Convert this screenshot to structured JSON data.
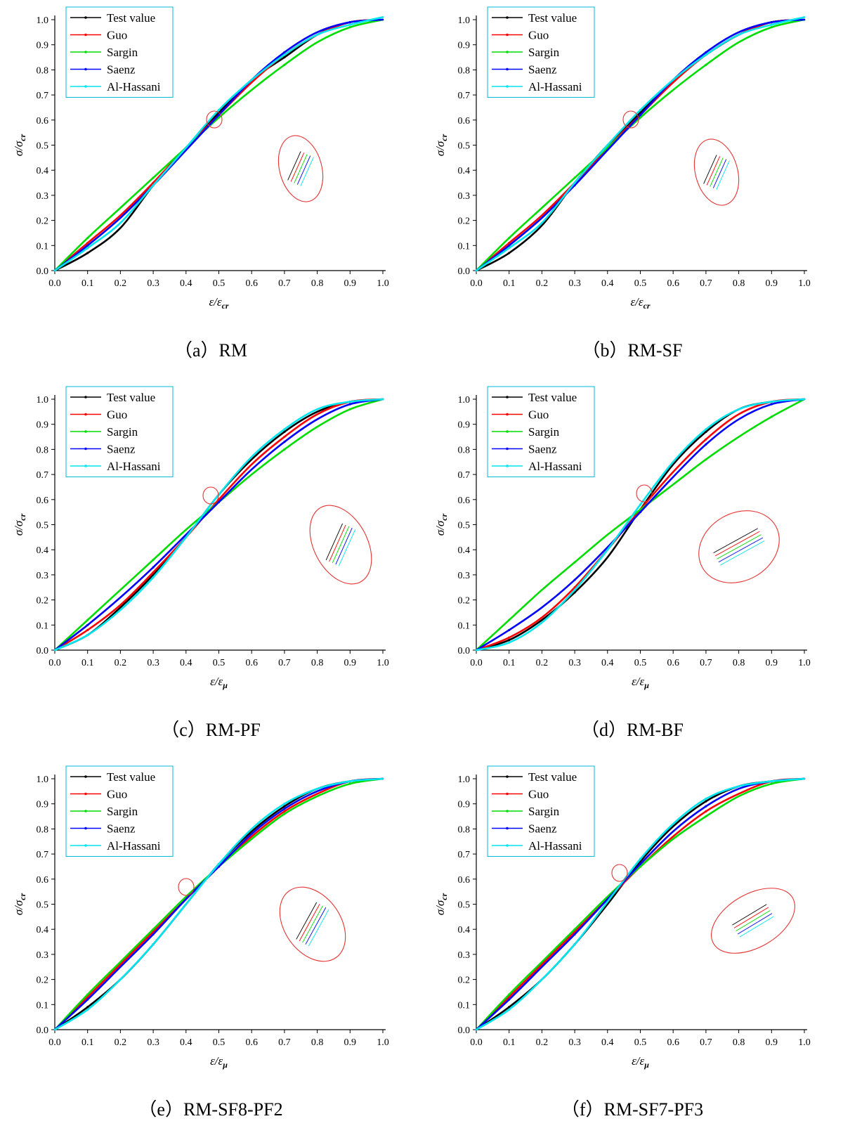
{
  "chart_data": [
    {
      "type": "line",
      "caption": "（a）RM",
      "xlabel": "ε/ε_cr",
      "ylabel": "σ/σ_cr",
      "xlim": [
        0,
        1.0
      ],
      "ylim": [
        0,
        1.0
      ],
      "xticks": [
        "0.0",
        "0.1",
        "0.2",
        "0.3",
        "0.4",
        "0.5",
        "0.6",
        "0.7",
        "0.8",
        "0.9",
        "1.0"
      ],
      "yticks": [
        "0.0",
        "0.1",
        "0.2",
        "0.3",
        "0.4",
        "0.5",
        "0.6",
        "0.7",
        "0.8",
        "0.9",
        "1.0"
      ],
      "legend_position": "top-left",
      "series": [
        {
          "name": "Test value",
          "color": "#000000",
          "x": [
            0,
            0.1,
            0.2,
            0.3,
            0.4,
            0.5,
            0.6,
            0.7,
            0.8,
            0.9,
            1.0
          ],
          "y": [
            0,
            0.07,
            0.17,
            0.34,
            0.49,
            0.63,
            0.76,
            0.85,
            0.94,
            0.99,
            1.0
          ]
        },
        {
          "name": "Guo",
          "color": "#ff0000",
          "x": [
            0,
            0.1,
            0.2,
            0.3,
            0.4,
            0.5,
            0.6,
            0.7,
            0.8,
            0.9,
            1.0
          ],
          "y": [
            0,
            0.11,
            0.22,
            0.35,
            0.49,
            0.62,
            0.75,
            0.86,
            0.94,
            0.99,
            1.0
          ]
        },
        {
          "name": "Sargin",
          "color": "#00dd00",
          "x": [
            0,
            0.1,
            0.2,
            0.3,
            0.4,
            0.5,
            0.6,
            0.7,
            0.8,
            0.9,
            1.0
          ],
          "y": [
            0,
            0.13,
            0.25,
            0.37,
            0.49,
            0.61,
            0.72,
            0.82,
            0.91,
            0.97,
            1.0
          ]
        },
        {
          "name": "Saenz",
          "color": "#0000ff",
          "x": [
            0,
            0.1,
            0.2,
            0.3,
            0.4,
            0.5,
            0.6,
            0.7,
            0.8,
            0.9,
            1.0
          ],
          "y": [
            0,
            0.1,
            0.21,
            0.34,
            0.48,
            0.62,
            0.76,
            0.87,
            0.95,
            0.99,
            1.0
          ]
        },
        {
          "name": "Al-Hassani",
          "color": "#00e5ee",
          "x": [
            0,
            0.1,
            0.2,
            0.3,
            0.4,
            0.5,
            0.6,
            0.7,
            0.8,
            0.9,
            1.0
          ],
          "y": [
            0,
            0.09,
            0.19,
            0.34,
            0.49,
            0.64,
            0.76,
            0.86,
            0.94,
            0.98,
            1.01
          ]
        }
      ]
    },
    {
      "type": "line",
      "caption": "（b）RM-SF",
      "xlabel": "ε/ε_cr",
      "ylabel": "σ/σ_cr",
      "xlim": [
        0,
        1.0
      ],
      "ylim": [
        0,
        1.0
      ],
      "xticks": [
        "0.0",
        "0.1",
        "0.2",
        "0.3",
        "0.4",
        "0.5",
        "0.6",
        "0.7",
        "0.8",
        "0.9",
        "1.0"
      ],
      "yticks": [
        "0.0",
        "0.1",
        "0.2",
        "0.3",
        "0.4",
        "0.5",
        "0.6",
        "0.7",
        "0.8",
        "0.9",
        "1.0"
      ],
      "legend_position": "top-left",
      "series": [
        {
          "name": "Test value",
          "color": "#000000",
          "x": [
            0,
            0.1,
            0.2,
            0.3,
            0.4,
            0.5,
            0.6,
            0.7,
            0.8,
            0.9,
            1.0
          ],
          "y": [
            0,
            0.07,
            0.18,
            0.35,
            0.5,
            0.63,
            0.76,
            0.86,
            0.94,
            0.99,
            1.0
          ]
        },
        {
          "name": "Guo",
          "color": "#ff0000",
          "x": [
            0,
            0.1,
            0.2,
            0.3,
            0.4,
            0.5,
            0.6,
            0.7,
            0.8,
            0.9,
            1.0
          ],
          "y": [
            0,
            0.11,
            0.22,
            0.35,
            0.49,
            0.62,
            0.75,
            0.86,
            0.94,
            0.99,
            1.0
          ]
        },
        {
          "name": "Sargin",
          "color": "#00dd00",
          "x": [
            0,
            0.1,
            0.2,
            0.3,
            0.4,
            0.5,
            0.6,
            0.7,
            0.8,
            0.9,
            1.0
          ],
          "y": [
            0,
            0.13,
            0.25,
            0.37,
            0.49,
            0.61,
            0.72,
            0.82,
            0.91,
            0.97,
            1.0
          ]
        },
        {
          "name": "Saenz",
          "color": "#0000ff",
          "x": [
            0,
            0.1,
            0.2,
            0.3,
            0.4,
            0.5,
            0.6,
            0.7,
            0.8,
            0.9,
            1.0
          ],
          "y": [
            0,
            0.1,
            0.21,
            0.34,
            0.48,
            0.62,
            0.76,
            0.87,
            0.95,
            0.99,
            1.0
          ]
        },
        {
          "name": "Al-Hassani",
          "color": "#00e5ee",
          "x": [
            0,
            0.1,
            0.2,
            0.3,
            0.4,
            0.5,
            0.6,
            0.7,
            0.8,
            0.9,
            1.0
          ],
          "y": [
            0,
            0.09,
            0.19,
            0.35,
            0.5,
            0.64,
            0.76,
            0.86,
            0.94,
            0.98,
            1.01
          ]
        }
      ]
    },
    {
      "type": "line",
      "caption": "（c）RM-PF",
      "xlabel": "ε/ε_μ",
      "ylabel": "σ/σ_cr",
      "xlim": [
        0,
        1.0
      ],
      "ylim": [
        0,
        1.0
      ],
      "xticks": [
        "0.0",
        "0.1",
        "0.2",
        "0.3",
        "0.4",
        "0.5",
        "0.6",
        "0.7",
        "0.8",
        "0.9",
        "1.0"
      ],
      "yticks": [
        "0.0",
        "0.1",
        "0.2",
        "0.3",
        "0.4",
        "0.5",
        "0.6",
        "0.7",
        "0.8",
        "0.9",
        "1.0"
      ],
      "legend_position": "top-left",
      "series": [
        {
          "name": "Test value",
          "color": "#000000",
          "x": [
            0,
            0.1,
            0.2,
            0.3,
            0.4,
            0.5,
            0.6,
            0.7,
            0.8,
            0.9,
            1.0
          ],
          "y": [
            0,
            0.06,
            0.17,
            0.3,
            0.45,
            0.62,
            0.76,
            0.87,
            0.95,
            0.99,
            1.0
          ]
        },
        {
          "name": "Guo",
          "color": "#ff0000",
          "x": [
            0,
            0.1,
            0.2,
            0.3,
            0.4,
            0.5,
            0.6,
            0.7,
            0.8,
            0.9,
            1.0
          ],
          "y": [
            0,
            0.08,
            0.18,
            0.31,
            0.45,
            0.6,
            0.74,
            0.85,
            0.94,
            0.99,
            1.0
          ]
        },
        {
          "name": "Sargin",
          "color": "#00dd00",
          "x": [
            0,
            0.1,
            0.2,
            0.3,
            0.4,
            0.5,
            0.6,
            0.7,
            0.8,
            0.9,
            1.0
          ],
          "y": [
            0,
            0.12,
            0.24,
            0.36,
            0.48,
            0.59,
            0.7,
            0.8,
            0.89,
            0.96,
            1.0
          ]
        },
        {
          "name": "Saenz",
          "color": "#0000ff",
          "x": [
            0,
            0.1,
            0.2,
            0.3,
            0.4,
            0.5,
            0.6,
            0.7,
            0.8,
            0.9,
            1.0
          ],
          "y": [
            0,
            0.1,
            0.21,
            0.33,
            0.46,
            0.59,
            0.72,
            0.83,
            0.92,
            0.98,
            1.0
          ]
        },
        {
          "name": "Al-Hassani",
          "color": "#00e5ee",
          "x": [
            0,
            0.1,
            0.2,
            0.3,
            0.4,
            0.5,
            0.6,
            0.7,
            0.8,
            0.9,
            1.0
          ],
          "y": [
            0,
            0.06,
            0.16,
            0.29,
            0.45,
            0.62,
            0.77,
            0.88,
            0.96,
            0.99,
            1.0
          ]
        }
      ]
    },
    {
      "type": "line",
      "caption": "（d）RM-BF",
      "xlabel": "ε/ε_μ",
      "ylabel": "σ/σ_cr",
      "xlim": [
        0,
        1.0
      ],
      "ylim": [
        0,
        1.0
      ],
      "xticks": [
        "0.0",
        "0.1",
        "0.2",
        "0.3",
        "0.4",
        "0.5",
        "0.6",
        "0.7",
        "0.8",
        "0.9",
        "1.0"
      ],
      "yticks": [
        "0.0",
        "0.1",
        "0.2",
        "0.3",
        "0.4",
        "0.5",
        "0.6",
        "0.7",
        "0.8",
        "0.9",
        "1.0"
      ],
      "legend_position": "top-left",
      "series": [
        {
          "name": "Test value",
          "color": "#000000",
          "x": [
            0,
            0.1,
            0.2,
            0.3,
            0.4,
            0.5,
            0.6,
            0.7,
            0.8,
            0.9,
            1.0
          ],
          "y": [
            0,
            0.04,
            0.12,
            0.23,
            0.37,
            0.56,
            0.74,
            0.87,
            0.96,
            0.99,
            1.0
          ]
        },
        {
          "name": "Guo",
          "color": "#ff0000",
          "x": [
            0,
            0.1,
            0.2,
            0.3,
            0.4,
            0.5,
            0.6,
            0.7,
            0.8,
            0.9,
            1.0
          ],
          "y": [
            0,
            0.05,
            0.13,
            0.25,
            0.4,
            0.56,
            0.71,
            0.84,
            0.94,
            0.99,
            1.0
          ]
        },
        {
          "name": "Sargin",
          "color": "#00dd00",
          "x": [
            0,
            0.1,
            0.2,
            0.3,
            0.4,
            0.5,
            0.6,
            0.7,
            0.8,
            0.9,
            1.0
          ],
          "y": [
            0,
            0.12,
            0.24,
            0.35,
            0.46,
            0.56,
            0.66,
            0.76,
            0.85,
            0.93,
            1.0
          ]
        },
        {
          "name": "Saenz",
          "color": "#0000ff",
          "x": [
            0,
            0.1,
            0.2,
            0.3,
            0.4,
            0.5,
            0.6,
            0.7,
            0.8,
            0.9,
            1.0
          ],
          "y": [
            0,
            0.08,
            0.17,
            0.28,
            0.41,
            0.55,
            0.69,
            0.82,
            0.92,
            0.98,
            1.0
          ]
        },
        {
          "name": "Al-Hassani",
          "color": "#00e5ee",
          "x": [
            0,
            0.1,
            0.2,
            0.3,
            0.4,
            0.5,
            0.6,
            0.7,
            0.8,
            0.9,
            1.0
          ],
          "y": [
            0,
            0.03,
            0.11,
            0.24,
            0.4,
            0.58,
            0.75,
            0.88,
            0.96,
            0.99,
            1.0
          ]
        }
      ]
    },
    {
      "type": "line",
      "caption": "（e）RM-SF8-PF2",
      "xlabel": "ε/ε_μ",
      "ylabel": "σ/σ_cr",
      "xlim": [
        0,
        1.0
      ],
      "ylim": [
        0,
        1.0
      ],
      "xticks": [
        "0.0",
        "0.1",
        "0.2",
        "0.3",
        "0.4",
        "0.5",
        "0.6",
        "0.7",
        "0.8",
        "0.9",
        "1.0"
      ],
      "yticks": [
        "0.0",
        "0.1",
        "0.2",
        "0.3",
        "0.4",
        "0.5",
        "0.6",
        "0.7",
        "0.8",
        "0.9",
        "1.0"
      ],
      "legend_position": "top-left",
      "series": [
        {
          "name": "Test value",
          "color": "#000000",
          "x": [
            0,
            0.1,
            0.2,
            0.3,
            0.4,
            0.5,
            0.6,
            0.7,
            0.8,
            0.9,
            1.0
          ],
          "y": [
            0,
            0.09,
            0.2,
            0.34,
            0.5,
            0.66,
            0.79,
            0.89,
            0.96,
            0.99,
            1.0
          ]
        },
        {
          "name": "Guo",
          "color": "#ff0000",
          "x": [
            0,
            0.1,
            0.2,
            0.3,
            0.4,
            0.5,
            0.6,
            0.7,
            0.8,
            0.9,
            1.0
          ],
          "y": [
            0,
            0.13,
            0.26,
            0.39,
            0.52,
            0.65,
            0.77,
            0.87,
            0.94,
            0.99,
            1.0
          ]
        },
        {
          "name": "Sargin",
          "color": "#00dd00",
          "x": [
            0,
            0.1,
            0.2,
            0.3,
            0.4,
            0.5,
            0.6,
            0.7,
            0.8,
            0.9,
            1.0
          ],
          "y": [
            0,
            0.14,
            0.27,
            0.4,
            0.53,
            0.65,
            0.76,
            0.86,
            0.93,
            0.98,
            1.0
          ]
        },
        {
          "name": "Saenz",
          "color": "#0000ff",
          "x": [
            0,
            0.1,
            0.2,
            0.3,
            0.4,
            0.5,
            0.6,
            0.7,
            0.8,
            0.9,
            1.0
          ],
          "y": [
            0,
            0.12,
            0.25,
            0.38,
            0.52,
            0.65,
            0.78,
            0.88,
            0.95,
            0.99,
            1.0
          ]
        },
        {
          "name": "Al-Hassani",
          "color": "#00e5ee",
          "x": [
            0,
            0.1,
            0.2,
            0.3,
            0.4,
            0.5,
            0.6,
            0.7,
            0.8,
            0.9,
            1.0
          ],
          "y": [
            0,
            0.08,
            0.2,
            0.34,
            0.5,
            0.66,
            0.8,
            0.9,
            0.96,
            0.99,
            1.0
          ]
        }
      ]
    },
    {
      "type": "line",
      "caption": "（f）RM-SF7-PF3",
      "xlabel": "ε/ε_μ",
      "ylabel": "σ/σ_cr",
      "xlim": [
        0,
        1.0
      ],
      "ylim": [
        0,
        1.0
      ],
      "xticks": [
        "0.0",
        "0.1",
        "0.2",
        "0.3",
        "0.4",
        "0.5",
        "0.6",
        "0.7",
        "0.8",
        "0.9",
        "1.0"
      ],
      "yticks": [
        "0.0",
        "0.1",
        "0.2",
        "0.3",
        "0.4",
        "0.5",
        "0.6",
        "0.7",
        "0.8",
        "0.9",
        "1.0"
      ],
      "legend_position": "top-left",
      "series": [
        {
          "name": "Test value",
          "color": "#000000",
          "x": [
            0,
            0.1,
            0.2,
            0.3,
            0.4,
            0.5,
            0.6,
            0.7,
            0.8,
            0.9,
            1.0
          ],
          "y": [
            0,
            0.09,
            0.2,
            0.34,
            0.5,
            0.67,
            0.81,
            0.91,
            0.97,
            0.99,
            1.0
          ]
        },
        {
          "name": "Guo",
          "color": "#ff0000",
          "x": [
            0,
            0.1,
            0.2,
            0.3,
            0.4,
            0.5,
            0.6,
            0.7,
            0.8,
            0.9,
            1.0
          ],
          "y": [
            0,
            0.13,
            0.26,
            0.39,
            0.52,
            0.65,
            0.77,
            0.87,
            0.94,
            0.99,
            1.0
          ]
        },
        {
          "name": "Sargin",
          "color": "#00dd00",
          "x": [
            0,
            0.1,
            0.2,
            0.3,
            0.4,
            0.5,
            0.6,
            0.7,
            0.8,
            0.9,
            1.0
          ],
          "y": [
            0,
            0.14,
            0.27,
            0.4,
            0.53,
            0.65,
            0.76,
            0.85,
            0.93,
            0.98,
            1.0
          ]
        },
        {
          "name": "Saenz",
          "color": "#0000ff",
          "x": [
            0,
            0.1,
            0.2,
            0.3,
            0.4,
            0.5,
            0.6,
            0.7,
            0.8,
            0.9,
            1.0
          ],
          "y": [
            0,
            0.12,
            0.25,
            0.38,
            0.52,
            0.66,
            0.79,
            0.89,
            0.96,
            0.99,
            1.0
          ]
        },
        {
          "name": "Al-Hassani",
          "color": "#00e5ee",
          "x": [
            0,
            0.1,
            0.2,
            0.3,
            0.4,
            0.5,
            0.6,
            0.7,
            0.8,
            0.9,
            1.0
          ],
          "y": [
            0,
            0.08,
            0.2,
            0.34,
            0.51,
            0.68,
            0.82,
            0.92,
            0.97,
            0.99,
            1.0
          ]
        }
      ]
    }
  ]
}
